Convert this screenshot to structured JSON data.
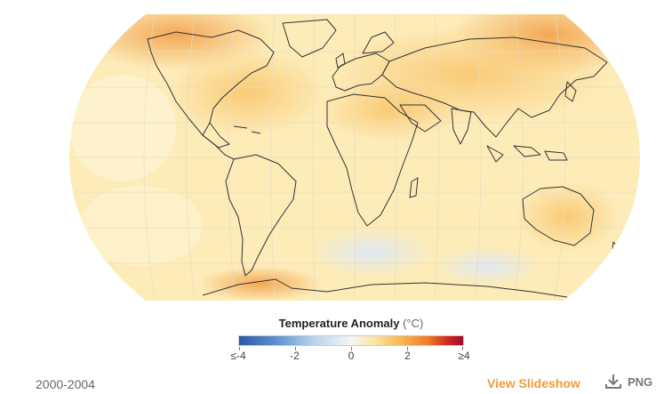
{
  "map": {
    "projection": "Robinson",
    "colors": {
      "base": "#fdecb6",
      "warm": "#f9c86a",
      "hot": "#f2a54a",
      "cool": "#e6edf6",
      "coastline": "#333333"
    }
  },
  "legend": {
    "title": "Temperature Anomaly",
    "unit": "(°C)",
    "ticks": [
      "≤-4",
      "-2",
      "0",
      "2",
      "≥4"
    ],
    "tick_values": [
      -4,
      -2,
      0,
      2,
      4
    ]
  },
  "footer": {
    "period": "2000-2004",
    "slideshow_label": "View Slideshow",
    "download_label": "PNG"
  }
}
